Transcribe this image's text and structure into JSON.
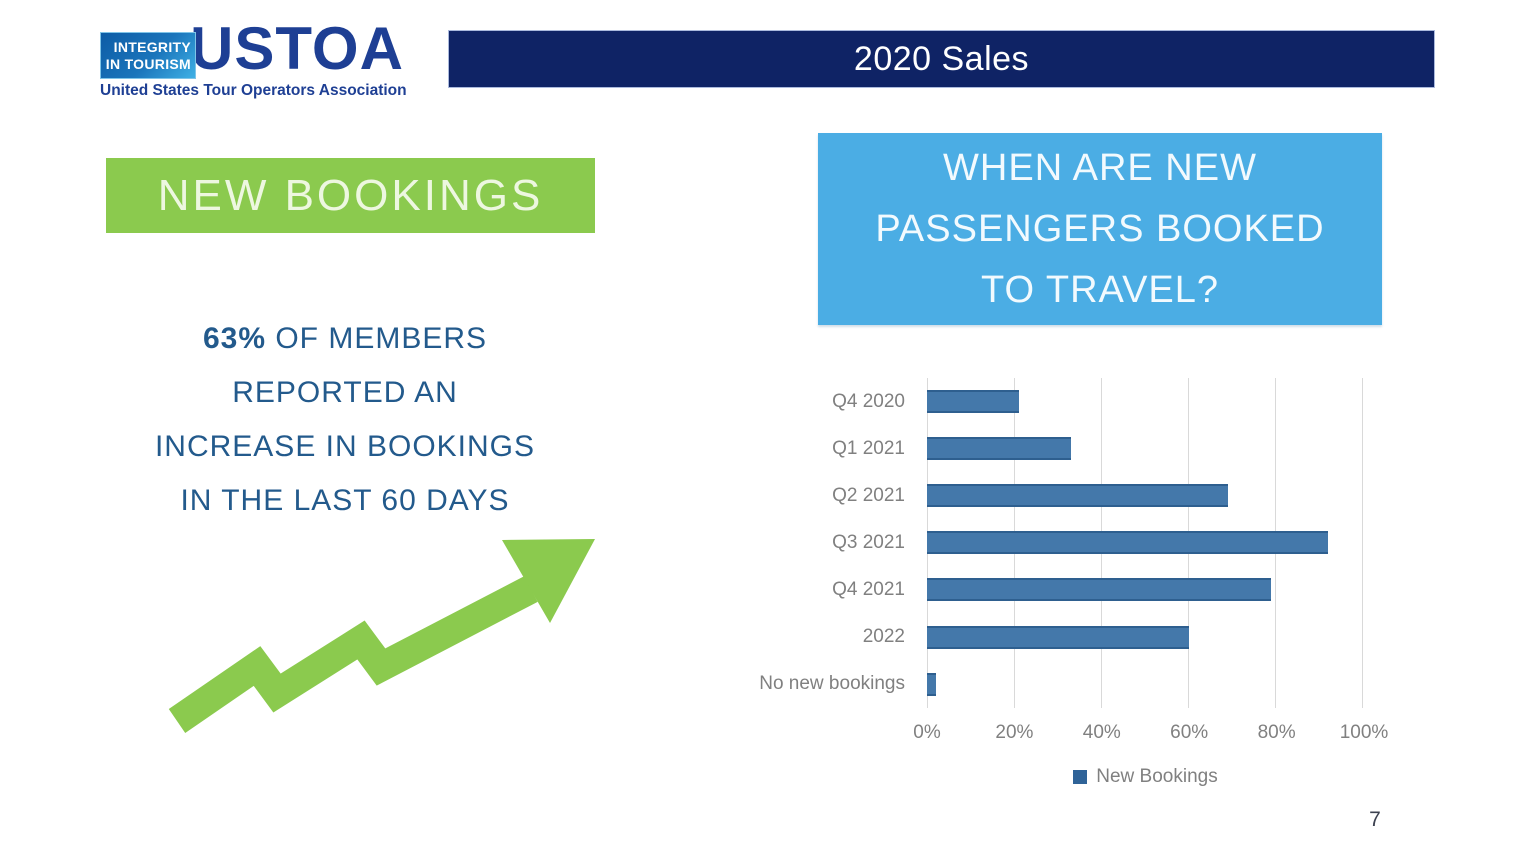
{
  "logo": {
    "badge_line1": "INTEGRITY",
    "badge_line2": "IN TOURISM",
    "acronym": "USTOA",
    "tagline": "United States Tour Operators Association",
    "navy": "#1e3f94"
  },
  "header": {
    "title": "2020 Sales",
    "bg_color": "#0f2365"
  },
  "left_panel": {
    "banner_label": "NEW BOOKINGS",
    "banner_bg": "#8bca4e",
    "stat": {
      "highlight": "63%",
      "line1_rest": " OF MEMBERS",
      "line2": "REPORTED AN",
      "line3": "INCREASE IN BOOKINGS",
      "line4": "IN THE LAST 60 DAYS",
      "text_color": "#235a8c"
    },
    "arrow_color": "#8bca4e"
  },
  "right_panel": {
    "question_line1": "WHEN ARE NEW",
    "question_line2": "PASSENGERS BOOKED",
    "question_line3": "TO TRAVEL?",
    "bg_color": "#4bade4"
  },
  "chart_data": {
    "type": "bar",
    "orientation": "horizontal",
    "title": "WHEN ARE NEW PASSENGERS BOOKED TO TRAVEL?",
    "categories": [
      "Q4 2020",
      "Q1 2021",
      "Q2 2021",
      "Q3 2021",
      "Q4 2021",
      "2022",
      "No new bookings"
    ],
    "values": [
      21,
      33,
      69,
      92,
      79,
      60,
      2
    ],
    "unit": "%",
    "xlim": [
      0,
      100
    ],
    "x_ticks": [
      "0%",
      "20%",
      "40%",
      "60%",
      "80%",
      "100%"
    ],
    "grid": true,
    "legend": [
      "New Bookings"
    ],
    "legend_position": "bottom",
    "bar_color": "#4478aa",
    "bar_border_color": "#2e5f8f",
    "legend_marker_color": "#2f6398"
  },
  "page": {
    "number": "7"
  }
}
